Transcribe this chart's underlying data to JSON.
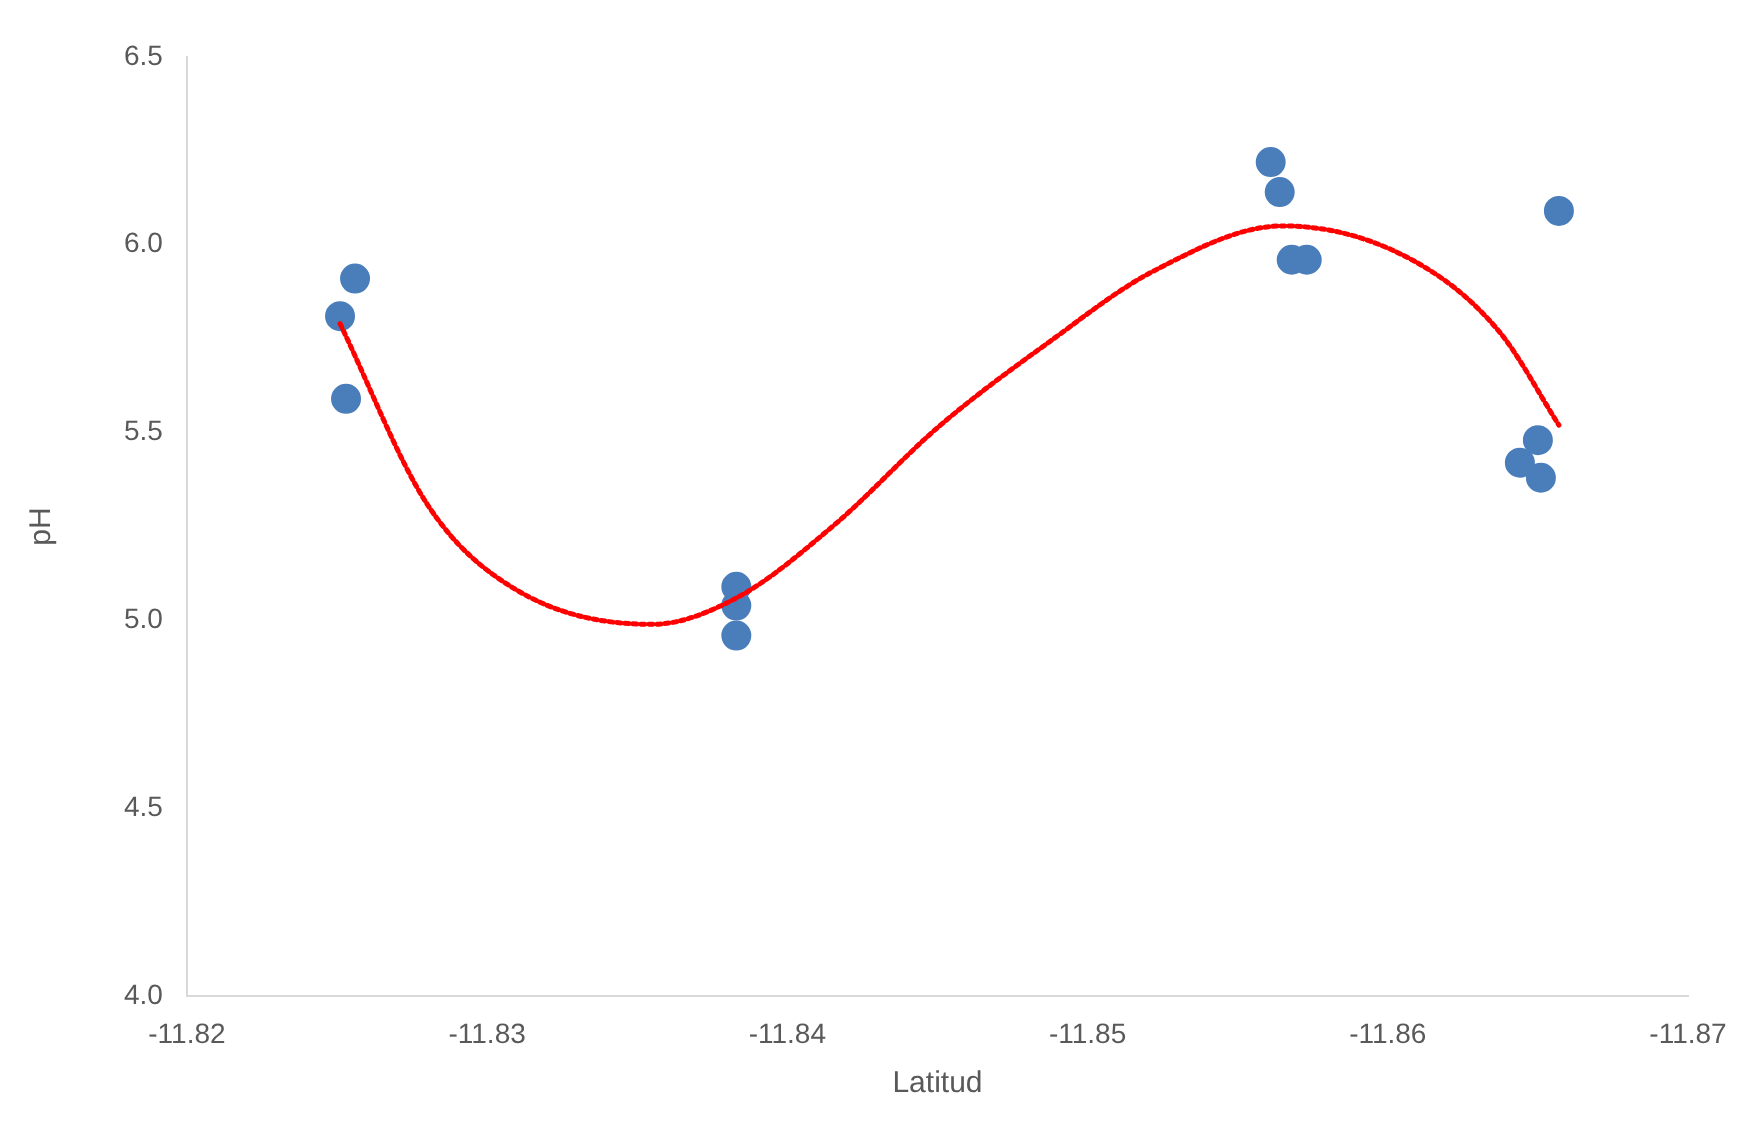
{
  "chart_data": {
    "type": "scatter",
    "xlabel": "Latitud",
    "ylabel": "pH",
    "xlim": [
      -11.82,
      -11.87
    ],
    "xticks": [
      -11.82,
      -11.83,
      -11.84,
      -11.85,
      -11.86,
      -11.87
    ],
    "ylim": [
      4,
      6.5
    ],
    "yticks": [
      {
        "value": 4,
        "label": "4.0"
      },
      4.5,
      {
        "value": 5,
        "label": "5.0"
      },
      5.5,
      {
        "value": 6,
        "label": "6.0"
      },
      6.5
    ],
    "grid": false,
    "legend": false,
    "marker": "circle",
    "series": [
      {
        "color": "#4a7ebb",
        "x": [
          -11.8251,
          -11.8256,
          -11.8253,
          -11.8383,
          -11.8383,
          -11.8383,
          -11.8561,
          -11.8564,
          -11.8568,
          -11.8573,
          -11.8657,
          -11.8644,
          -11.865,
          -11.8651
        ],
        "values": [
          5.81,
          5.91,
          5.59,
          5.09,
          5.04,
          4.96,
          6.22,
          6.14,
          5.96,
          5.96,
          6.09,
          5.42,
          5.48,
          5.38
        ]
      },
      {
        "type": "line",
        "color": "#ff0000",
        "marker": "none",
        "line_style": "dotted",
        "x": [
          -11.8251,
          -11.828,
          -11.8308,
          -11.8355,
          -11.8383,
          -11.8415,
          -11.8451,
          -11.8487,
          -11.8522,
          -11.8565,
          -11.8608,
          -11.8637,
          -11.8657
        ],
        "values": [
          5.79,
          5.31,
          5.09,
          4.99,
          5.06,
          5.25,
          5.52,
          5.74,
          5.93,
          6.05,
          5.96,
          5.77,
          5.52
        ]
      }
    ]
  }
}
